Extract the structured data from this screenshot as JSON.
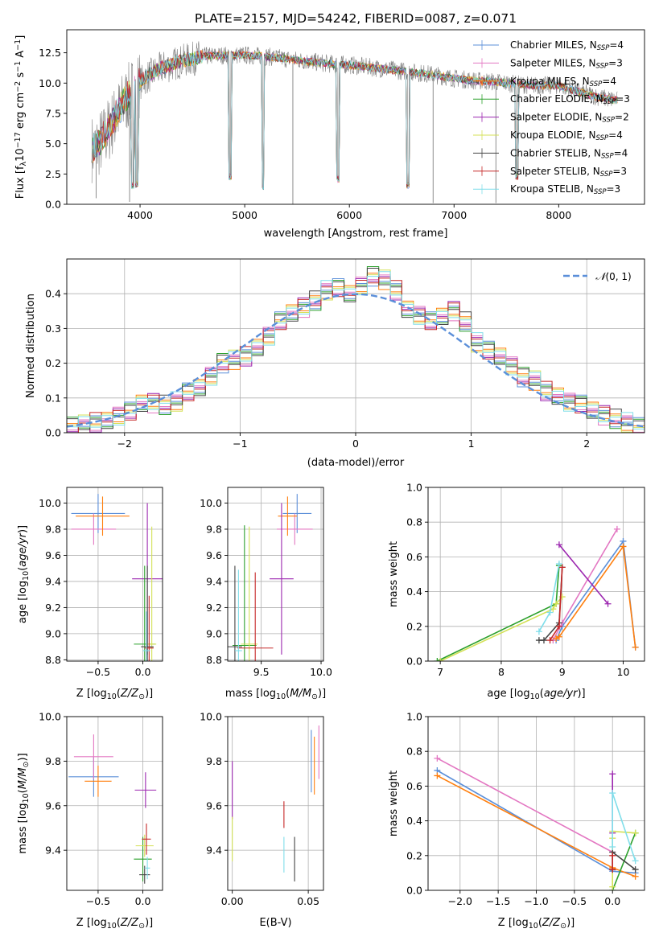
{
  "figure": {
    "title": "PLATE=2157, MJD=54242, FIBERID=0087, z=0.071"
  },
  "colors": {
    "Chabrier MILES": "#5b8fd9",
    "Salpeter MILES": "#e377c2",
    "Kroupa MILES": "#ff7f0e",
    "Chabrier ELODIE": "#2ca02c",
    "Salpeter ELODIE": "#9c27b0",
    "Kroupa ELODIE": "#d4e157",
    "Chabrier STELIB": "#444444",
    "Salpeter STELIB": "#c62828",
    "Kroupa STELIB": "#80deea",
    "data": "#808080",
    "normal": "#5b8fd9"
  },
  "legend_entries": [
    {
      "pre": "Chabrier MILES, N",
      "sub": "SSP",
      "post": "=4"
    },
    {
      "pre": "Salpeter MILES, N",
      "sub": "SSP",
      "post": "=3"
    },
    {
      "pre": "Kroupa MILES, N",
      "sub": "SSP",
      "post": "=4"
    },
    {
      "pre": "Chabrier ELODIE, N",
      "sub": "SSP",
      "post": "=3"
    },
    {
      "pre": "Salpeter ELODIE, N",
      "sub": "SSP",
      "post": "=2"
    },
    {
      "pre": "Kroupa ELODIE, N",
      "sub": "SSP",
      "post": "=4"
    },
    {
      "pre": "Chabrier STELIB, N",
      "sub": "SSP",
      "post": "=4"
    },
    {
      "pre": "Salpeter STELIB, N",
      "sub": "SSP",
      "post": "=3"
    },
    {
      "pre": "Kroupa STELIB, N",
      "sub": "SSP",
      "post": "=3"
    }
  ],
  "chart_data": [
    {
      "id": "spectrum",
      "type": "line",
      "xlabel": "wavelength [Angstrom, rest frame]",
      "ylabel_parts": {
        "pre": "Flux [f",
        "sub": "λ",
        "mid": "10",
        "sup1": "−17",
        "mid2": " erg cm",
        "sup2": "−2",
        "mid3": " s",
        "sup3": "−1",
        "mid4": " A",
        "sup4": "−1",
        "post": "]"
      },
      "xlim": [
        3300,
        8820
      ],
      "ylim": [
        0,
        14.4
      ],
      "xticks": [
        4000,
        5000,
        6000,
        7000,
        8000
      ],
      "yticks": [
        "0.0",
        "2.5",
        "5.0",
        "7.5",
        "10.0",
        "12.5"
      ],
      "continuum_x": [
        3570,
        3650,
        3750,
        3850,
        3950,
        4050,
        4200,
        4400,
        4600,
        4800,
        5000,
        5200,
        5400,
        5600,
        5800,
        6000,
        6200,
        6400,
        6600,
        6800,
        7000,
        7200,
        7400,
        7600,
        7800,
        8000,
        8200,
        8400,
        8550
      ],
      "continuum_y": [
        4.6,
        5.4,
        6.9,
        8.4,
        9.6,
        10.4,
        11.2,
        11.8,
        12.2,
        12.3,
        12.3,
        12.2,
        12.0,
        11.8,
        11.6,
        11.5,
        11.3,
        11.1,
        10.9,
        10.7,
        10.4,
        10.2,
        10.1,
        9.9,
        9.8,
        9.8,
        9.3,
        8.8,
        8.6
      ],
      "absorption_lines": [
        [
          3934,
          1.3
        ],
        [
          3969,
          1.4
        ],
        [
          4861,
          2.0
        ],
        [
          5175,
          1.2
        ],
        [
          5893,
          1.8
        ],
        [
          6563,
          1.3
        ],
        [
          7600,
          2.0
        ]
      ],
      "spikes": [
        [
          3580,
          0.5
        ],
        [
          3900,
          0.2
        ],
        [
          5460,
          0.0
        ],
        [
          6800,
          0.1
        ],
        [
          7400,
          0.1
        ]
      ]
    },
    {
      "id": "residuals",
      "type": "histogram",
      "xlabel": "(data-model)/error",
      "ylabel": "Normed distribution",
      "xlim": [
        -2.5,
        2.5
      ],
      "ylim": [
        0,
        0.5
      ],
      "xticks": [
        -2,
        -1,
        0,
        1,
        2
      ],
      "yticks": [
        "0.0",
        "0.1",
        "0.2",
        "0.3",
        "0.4"
      ],
      "bin_width": 0.1,
      "bin_start": -2.5,
      "series_order": [
        "Chabrier MILES",
        "Salpeter MILES",
        "Kroupa MILES",
        "Chabrier ELODIE",
        "Salpeter ELODIE",
        "Kroupa ELODIE",
        "Chabrier STELIB",
        "Salpeter STELIB",
        "Kroupa STELIB"
      ],
      "bins_approx": [
        0.017,
        0.023,
        0.03,
        0.04,
        0.05,
        0.06,
        0.08,
        0.085,
        0.08,
        0.09,
        0.12,
        0.13,
        0.16,
        0.2,
        0.21,
        0.22,
        0.25,
        0.28,
        0.32,
        0.34,
        0.36,
        0.38,
        0.41,
        0.42,
        0.4,
        0.42,
        0.45,
        0.44,
        0.41,
        0.36,
        0.34,
        0.32,
        0.33,
        0.35,
        0.32,
        0.26,
        0.24,
        0.22,
        0.19,
        0.16,
        0.15,
        0.12,
        0.11,
        0.09,
        0.08,
        0.06,
        0.05,
        0.04,
        0.03,
        0.02
      ],
      "normal_legend": "N(0,1)",
      "normal_legend_parts": {
        "glyph": "𝒩",
        "args": "(0, 1)"
      }
    },
    {
      "id": "age_vs_Z",
      "type": "errorbar",
      "xlabel_parts": {
        "pre": "Z [log",
        "sub": "10",
        "mid": "(",
        "it": "Z/Z",
        "sub2": "⊙",
        "post": ")]"
      },
      "ylabel_parts": {
        "pre": "age  [log",
        "sub": "10",
        "mid": "(",
        "it": "age/yr",
        "post": ")]"
      },
      "xlim": [
        -0.85,
        0.22
      ],
      "ylim": [
        8.79,
        10.12
      ],
      "xticks": [
        -0.5,
        0.0
      ],
      "xtick_labels": [
        "−0.5",
        "0.0"
      ],
      "yticks": [
        8.8,
        9.0,
        9.2,
        9.4,
        9.6,
        9.8,
        10.0
      ],
      "ytick_labels": [
        "8.8",
        "9.0",
        "9.2",
        "9.4",
        "9.6",
        "9.8",
        "10.0"
      ],
      "points": [
        {
          "s": "Chabrier MILES",
          "x": -0.5,
          "xerr": 0.3,
          "y": 9.92,
          "yerr": 0.15
        },
        {
          "s": "Salpeter MILES",
          "x": -0.55,
          "xerr": 0.25,
          "y": 9.8,
          "yerr": 0.12
        },
        {
          "s": "Kroupa MILES",
          "x": -0.45,
          "xerr": 0.3,
          "y": 9.9,
          "yerr": 0.15
        },
        {
          "s": "Salpeter ELODIE",
          "x": 0.05,
          "xerr": 0.17,
          "y": 9.42,
          "yerr": 0.58
        },
        {
          "s": "Chabrier ELODIE",
          "x": 0.02,
          "xerr": 0.12,
          "y": 8.92,
          "yerr": 0.6
        },
        {
          "s": "Kroupa ELODIE",
          "x": 0.1,
          "xerr": 0.05,
          "y": 8.92,
          "yerr": 0.9
        },
        {
          "s": "Chabrier STELIB",
          "x": 0.05,
          "xerr": 0.07,
          "y": 8.9,
          "yerr": 0.62
        },
        {
          "s": "Salpeter STELIB",
          "x": 0.07,
          "xerr": 0.05,
          "y": 8.89,
          "yerr": 0.4
        },
        {
          "s": "Kroupa STELIB",
          "x": 0.04,
          "xerr": 0.04,
          "y": 8.87,
          "yerr": 0.3
        }
      ]
    },
    {
      "id": "age_vs_mass",
      "type": "errorbar",
      "xlabel_parts": {
        "pre": "mass [log",
        "sub": "10",
        "mid": "(",
        "it": "M/M",
        "sub2": "⊙",
        "post": ")]"
      },
      "xlim": [
        9.22,
        10.02
      ],
      "ylim": [
        8.79,
        10.12
      ],
      "xticks": [
        9.5,
        10.0
      ],
      "xtick_labels": [
        "9.5",
        "10.0"
      ],
      "yticks": [
        8.8,
        9.0,
        9.2,
        9.4,
        9.6,
        9.8,
        10.0
      ],
      "ytick_labels": [
        "8.8",
        "9.0",
        "9.2",
        "9.4",
        "9.6",
        "9.8",
        "10.0"
      ],
      "points": [
        {
          "s": "Chabrier MILES",
          "x": 9.8,
          "xerr": 0.12,
          "y": 9.92,
          "yerr": 0.15
        },
        {
          "s": "Salpeter MILES",
          "x": 9.78,
          "xerr": 0.15,
          "y": 9.8,
          "yerr": 0.12
        },
        {
          "s": "Kroupa MILES",
          "x": 9.72,
          "xerr": 0.08,
          "y": 9.9,
          "yerr": 0.15
        },
        {
          "s": "Salpeter ELODIE",
          "x": 9.67,
          "xerr": 0.1,
          "y": 9.42,
          "yerr": 0.58
        },
        {
          "s": "Chabrier ELODIE",
          "x": 9.36,
          "xerr": 0.1,
          "y": 8.91,
          "yerr": 0.92
        },
        {
          "s": "Kroupa ELODIE",
          "x": 9.4,
          "xerr": 0.07,
          "y": 8.92,
          "yerr": 0.9
        },
        {
          "s": "Chabrier STELIB",
          "x": 9.28,
          "xerr": 0.06,
          "y": 8.9,
          "yerr": 0.62
        },
        {
          "s": "Salpeter STELIB",
          "x": 9.45,
          "xerr": 0.15,
          "y": 8.89,
          "yerr": 0.58
        },
        {
          "s": "Kroupa STELIB",
          "x": 9.31,
          "xerr": 0.03,
          "y": 8.87,
          "yerr": 0.62
        }
      ]
    },
    {
      "id": "weight_vs_age",
      "type": "line",
      "xlabel_parts": {
        "pre": "age  [log",
        "sub": "10",
        "mid": "(",
        "it": "age/yr",
        "post": ")]"
      },
      "ylabel": "mass weight",
      "xlim": [
        6.8,
        10.35
      ],
      "ylim": [
        0,
        1.0
      ],
      "xticks": [
        7,
        8,
        9,
        10
      ],
      "xtick_labels": [
        "7",
        "8",
        "9",
        "10"
      ],
      "yticks": [
        0.0,
        0.2,
        0.4,
        0.6,
        0.8,
        1.0
      ],
      "ytick_labels": [
        "0.0",
        "0.2",
        "0.4",
        "0.6",
        "0.8",
        "1.0"
      ],
      "series": [
        {
          "s": "Chabrier MILES",
          "x": [
            8.9,
            9.0,
            10.0,
            10.2
          ],
          "y": [
            0.12,
            0.2,
            0.69,
            0.08
          ]
        },
        {
          "s": "Salpeter MILES",
          "x": [
            8.85,
            9.0,
            9.9
          ],
          "y": [
            0.12,
            0.22,
            0.76
          ]
        },
        {
          "s": "Kroupa MILES",
          "x": [
            8.9,
            8.95,
            10.0,
            10.2
          ],
          "y": [
            0.13,
            0.14,
            0.66,
            0.08
          ]
        },
        {
          "s": "Chabrier ELODIE",
          "x": [
            6.95,
            8.9,
            8.95
          ],
          "y": [
            0.0,
            0.33,
            0.55
          ]
        },
        {
          "s": "Salpeter ELODIE",
          "x": [
            8.95,
            9.75
          ],
          "y": [
            0.67,
            0.33
          ]
        },
        {
          "s": "Kroupa ELODIE",
          "x": [
            7.0,
            8.85,
            8.9,
            9.0
          ],
          "y": [
            0.0,
            0.3,
            0.33,
            0.37
          ]
        },
        {
          "s": "Chabrier STELIB",
          "x": [
            8.62,
            8.7,
            8.95,
            9.0
          ],
          "y": [
            0.12,
            0.12,
            0.22,
            0.54
          ]
        },
        {
          "s": "Salpeter STELIB",
          "x": [
            8.8,
            8.95,
            9.0
          ],
          "y": [
            0.12,
            0.2,
            0.54
          ]
        },
        {
          "s": "Kroupa STELIB",
          "x": [
            8.62,
            8.8,
            8.95
          ],
          "y": [
            0.17,
            0.28,
            0.56
          ]
        }
      ]
    },
    {
      "id": "mass_vs_Z",
      "type": "errorbar",
      "xlabel_parts": {
        "pre": "Z [log",
        "sub": "10",
        "mid": "(",
        "it": "Z/Z",
        "sub2": "⊙",
        "post": ")]"
      },
      "ylabel_parts": {
        "pre": "mass [log",
        "sub": "10",
        "mid": "(",
        "it": "M/M",
        "sub2": "⊙",
        "post": ")]"
      },
      "xlim": [
        -0.85,
        0.22
      ],
      "ylim": [
        9.22,
        10.0
      ],
      "xticks": [
        -0.5,
        0.0
      ],
      "xtick_labels": [
        "−0.5",
        "0.0"
      ],
      "yticks": [
        9.4,
        9.6,
        9.8,
        10.0
      ],
      "ytick_labels": [
        "9.4",
        "9.6",
        "9.8",
        "10.0"
      ],
      "points": [
        {
          "s": "Chabrier MILES",
          "x": -0.55,
          "xerr": 0.28,
          "y": 9.73,
          "yerr": 0.09
        },
        {
          "s": "Salpeter MILES",
          "x": -0.55,
          "xerr": 0.22,
          "y": 9.82,
          "yerr": 0.1
        },
        {
          "s": "Kroupa MILES",
          "x": -0.5,
          "xerr": 0.15,
          "y": 9.71,
          "yerr": 0.07
        },
        {
          "s": "Chabrier ELODIE",
          "x": 0.0,
          "xerr": 0.1,
          "y": 9.36,
          "yerr": 0.1
        },
        {
          "s": "Salpeter ELODIE",
          "x": 0.03,
          "xerr": 0.12,
          "y": 9.67,
          "yerr": 0.08
        },
        {
          "s": "Kroupa ELODIE",
          "x": 0.02,
          "xerr": 0.1,
          "y": 9.42,
          "yerr": 0.05
        },
        {
          "s": "Chabrier STELIB",
          "x": 0.02,
          "xerr": 0.06,
          "y": 9.29,
          "yerr": 0.04
        },
        {
          "s": "Salpeter STELIB",
          "x": 0.04,
          "xerr": 0.05,
          "y": 9.45,
          "yerr": 0.07
        },
        {
          "s": "Kroupa STELIB",
          "x": 0.05,
          "xerr": 0.03,
          "y": 9.32,
          "yerr": 0.05
        }
      ]
    },
    {
      "id": "mass_vs_EBV",
      "type": "errorbar",
      "xlabel": "E(B-V)",
      "xlim": [
        -0.003,
        0.06
      ],
      "ylim": [
        9.22,
        10.0
      ],
      "xticks": [
        0.0,
        0.05
      ],
      "xtick_labels": [
        "0.00",
        "0.05"
      ],
      "yticks": [
        9.4,
        9.6,
        9.8,
        10.0
      ],
      "ytick_labels": [
        "9.4",
        "9.6",
        "9.8",
        "10.0"
      ],
      "points": [
        {
          "s": "Salpeter ELODIE",
          "x": 0.0,
          "y": 9.67,
          "yerr": 0.13
        },
        {
          "s": "Kroupa ELODIE",
          "x": 0.0,
          "y": 9.45,
          "yerr": 0.1
        },
        {
          "s": "Salpeter STELIB",
          "x": 0.034,
          "y": 9.56,
          "yerr": 0.06
        },
        {
          "s": "Kroupa STELIB",
          "x": 0.034,
          "y": 9.38,
          "yerr": 0.08
        },
        {
          "s": "Chabrier STELIB",
          "x": 0.041,
          "y": 9.36,
          "yerr": 0.1
        },
        {
          "s": "Chabrier MILES",
          "x": 0.052,
          "y": 9.8,
          "yerr": 0.14
        },
        {
          "s": "Kroupa MILES",
          "x": 0.054,
          "y": 9.78,
          "yerr": 0.13
        },
        {
          "s": "Salpeter MILES",
          "x": 0.057,
          "y": 9.84,
          "yerr": 0.12
        }
      ]
    },
    {
      "id": "weight_vs_Z",
      "type": "line",
      "xlabel_parts": {
        "pre": "Z [log",
        "sub": "10",
        "mid": "(",
        "it": "Z/Z",
        "sub2": "⊙",
        "post": ")]"
      },
      "ylabel": "mass weight",
      "xlim": [
        -2.42,
        0.42
      ],
      "ylim": [
        0,
        1.0
      ],
      "xticks": [
        -2.0,
        -1.5,
        -1.0,
        -0.5,
        0.0
      ],
      "xtick_labels": [
        "−2.0",
        "−1.5",
        "−1.0",
        "−0.5",
        "0.0"
      ],
      "yticks": [
        0.0,
        0.2,
        0.4,
        0.6,
        0.8,
        1.0
      ],
      "ytick_labels": [
        "0.0",
        "0.2",
        "0.4",
        "0.6",
        "0.8",
        "1.0"
      ],
      "series": [
        {
          "s": "Chabrier MILES",
          "x": [
            -2.3,
            0.0,
            0.3
          ],
          "y": [
            0.69,
            0.11,
            0.1
          ]
        },
        {
          "s": "Salpeter MILES",
          "x": [
            -2.3,
            0.0,
            0.0
          ],
          "y": [
            0.76,
            0.22,
            0.12
          ]
        },
        {
          "s": "Kroupa MILES",
          "x": [
            -2.3,
            0.0,
            0.3
          ],
          "y": [
            0.66,
            0.13,
            0.08
          ]
        },
        {
          "s": "Chabrier ELODIE",
          "x": [
            0.0,
            0.3
          ],
          "y": [
            0.0,
            0.33
          ]
        },
        {
          "s": "Salpeter ELODIE",
          "x": [
            0.0,
            0.0
          ],
          "y": [
            0.33,
            0.67
          ]
        },
        {
          "s": "Kroupa ELODIE",
          "x": [
            0.0,
            0.0,
            0.0,
            0.3
          ],
          "y": [
            0.02,
            0.3,
            0.34,
            0.33
          ]
        },
        {
          "s": "Chabrier STELIB",
          "x": [
            0.0,
            0.0,
            0.3
          ],
          "y": [
            0.12,
            0.22,
            0.12
          ]
        },
        {
          "s": "Salpeter STELIB",
          "x": [
            0.0,
            0.0
          ],
          "y": [
            0.12,
            0.2
          ]
        },
        {
          "s": "Kroupa STELIB",
          "x": [
            0.0,
            0.0,
            0.3
          ],
          "y": [
            0.25,
            0.56,
            0.17
          ]
        }
      ]
    }
  ]
}
